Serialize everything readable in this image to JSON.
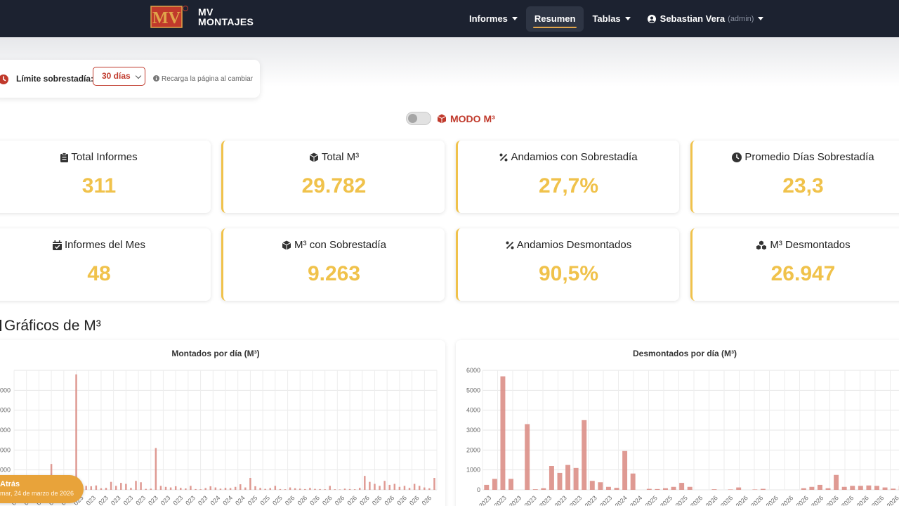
{
  "nav": {
    "brand_line1": "MV",
    "brand_line2": "MONTAJES",
    "logo_text": "MV",
    "items": [
      {
        "label": "Informes",
        "dropdown": true
      },
      {
        "label": "Resumen",
        "active": true
      },
      {
        "label": "Tablas",
        "dropdown": true
      }
    ],
    "user_name": "Sebastian Vera",
    "user_role": "(admin)"
  },
  "filter": {
    "label": "Límite sobrestadía:",
    "selected": "30 días",
    "hint": "Recarga la página al cambiar"
  },
  "mode": {
    "label": "MODO M³",
    "enabled": false
  },
  "stats": [
    {
      "title": "Total Informes",
      "value": "311",
      "icon": "clipboard-icon"
    },
    {
      "title": "Total M³",
      "value": "29.782",
      "icon": "cube-icon"
    },
    {
      "title": "Andamios con Sobrestadía",
      "value": "27,7%",
      "icon": "percent-icon"
    },
    {
      "title": "Promedio Días Sobrestadía",
      "value": "23,3",
      "icon": "clock-icon"
    },
    {
      "title": "Informes del Mes",
      "value": "48",
      "icon": "calendar-check-icon"
    },
    {
      "title": "M³ con Sobrestadía",
      "value": "9.263",
      "icon": "cube-icon"
    },
    {
      "title": "Andamios Desmontados",
      "value": "90,5%",
      "icon": "percent-icon"
    },
    {
      "title": "M³ Desmontados",
      "value": "26.947",
      "icon": "cubes-icon"
    }
  ],
  "section": {
    "title": "Gráficos de M³"
  },
  "colors": {
    "accent": "#f0c24b",
    "brand_red": "#c0392b",
    "nav_bg": "#1c2230",
    "bar": "#d98880",
    "back": "#e8a33a"
  },
  "back": {
    "label": "Atrás",
    "date": "mar, 24 de marzo de 2026"
  },
  "chart_data": [
    {
      "type": "bar",
      "title": "Montados por día (M³)",
      "ylim": [
        0,
        6000
      ],
      "yticks": [
        "000",
        "000",
        "000",
        "000",
        "000",
        ""
      ],
      "x_tick_labels": [
        "023",
        "023",
        "023",
        "023",
        "023",
        "023",
        "023",
        "023",
        "023",
        "023",
        "023",
        "023",
        "023",
        "023",
        "023",
        "023",
        "024",
        "024",
        "024",
        "025",
        "025",
        "025",
        "026",
        "026",
        "026",
        "026",
        "026",
        "026",
        "026",
        "026",
        "026",
        "026",
        "026",
        "026"
      ],
      "values": [
        0,
        60,
        80,
        40,
        20,
        50,
        30,
        1300,
        200,
        100,
        600,
        400,
        5800,
        150,
        200,
        180,
        220,
        80,
        100,
        400,
        200,
        350,
        300,
        100,
        450,
        380,
        50,
        60,
        2100,
        200,
        150,
        120,
        180,
        100,
        70,
        200,
        40,
        30,
        90,
        180,
        120,
        60,
        100,
        90,
        150,
        280,
        120,
        600,
        180,
        100,
        50,
        90,
        200,
        40,
        30,
        120,
        80,
        60,
        40,
        100,
        50,
        40,
        30,
        200,
        30,
        20,
        60,
        40,
        30,
        100,
        700,
        400,
        300,
        200,
        450,
        250,
        300,
        150,
        200,
        100,
        300,
        200,
        120,
        80,
        600
      ]
    },
    {
      "type": "bar",
      "title": "Desmontados por día (M³)",
      "ylim": [
        0,
        6000
      ],
      "yticks": [
        "0",
        "1000",
        "2000",
        "3000",
        "4000",
        "5000",
        "6000"
      ],
      "x_tick_labels": [
        "2023",
        "2023",
        "2023",
        "2023",
        "2023",
        "2023",
        "2023",
        "2023",
        "2023",
        "2024",
        "2024",
        "2025",
        "2025",
        "2025",
        "2026",
        "2026",
        "2026",
        "2026",
        "2026",
        "2026",
        "2026",
        "2026",
        "2026",
        "2026",
        "2026",
        "2026",
        "2026",
        "2026"
      ],
      "values": [
        250,
        550,
        5700,
        550,
        0,
        3300,
        30,
        80,
        1200,
        850,
        1250,
        1100,
        3500,
        450,
        380,
        150,
        100,
        1950,
        820,
        0,
        50,
        40,
        80,
        150,
        350,
        150,
        0,
        0,
        30,
        0,
        20,
        120,
        0,
        20,
        50,
        0,
        0,
        0,
        0,
        80,
        150,
        250,
        80,
        750,
        150,
        200,
        200,
        220,
        200,
        120,
        60,
        200
      ]
    }
  ]
}
